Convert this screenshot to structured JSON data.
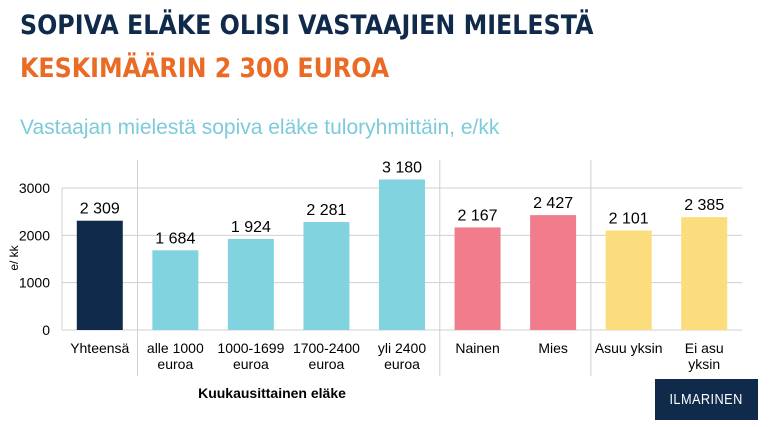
{
  "header": {
    "title_line1": "SOPIVA ELÄKE OLISI VASTAAJIEN MIELESTÄ",
    "title_line2": "KESKIMÄÄRIN 2 300 EUROA"
  },
  "logo": {
    "text": "ILMARINEN"
  },
  "colors": {
    "navy": "#0f2a4a",
    "teal": "#82d3e0",
    "pink": "#f07c8c",
    "yellow": "#fcdd7e",
    "orange": "#e96b25",
    "subtitle": "#7ccbda"
  },
  "chart_data": {
    "type": "bar",
    "title": "Vastaajan mielestä sopiva eläke tuloryhmittäin, e/kk",
    "xlabel": "Kuukausittainen eläke",
    "ylabel": "e/ kk",
    "ylim": [
      0,
      3000
    ],
    "yticks": [
      0,
      1000,
      2000,
      3000
    ],
    "ytick_labels": [
      "0",
      "1000",
      "2000",
      "3000"
    ],
    "grid": true,
    "categories": [
      [
        "Yhteensä"
      ],
      [
        "alle 1000",
        "euroa"
      ],
      [
        "1000-1699",
        "euroa"
      ],
      [
        "1700-2400",
        "euroa"
      ],
      [
        "yli 2400",
        "euroa"
      ],
      [
        "Nainen"
      ],
      [
        "Mies"
      ],
      [
        "Asuu yksin"
      ],
      [
        "Ei asu",
        "yksin"
      ]
    ],
    "values": [
      2309,
      1684,
      1924,
      2281,
      3180,
      2167,
      2427,
      2101,
      2385
    ],
    "value_labels": [
      "2 309",
      "1 684",
      "1 924",
      "2 281",
      "3 180",
      "2 167",
      "2 427",
      "2 101",
      "2 385"
    ],
    "bar_colors": [
      "#0f2a4a",
      "#82d3e0",
      "#82d3e0",
      "#82d3e0",
      "#82d3e0",
      "#f07c8c",
      "#f07c8c",
      "#fcdd7e",
      "#fcdd7e"
    ]
  }
}
